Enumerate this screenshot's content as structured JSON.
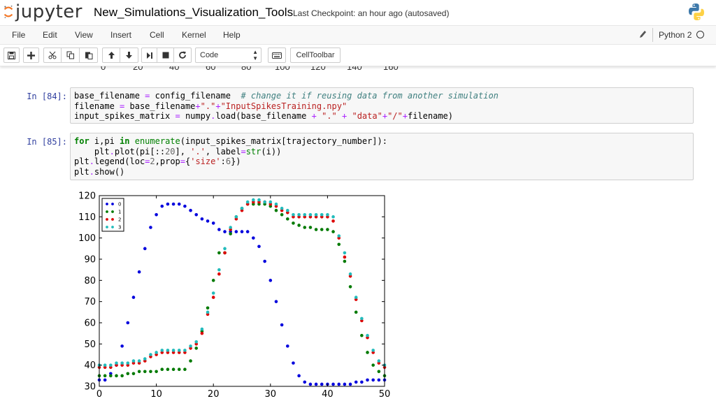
{
  "header": {
    "logo_text": "jupyter",
    "notebook_title": "New_Simulations_Visualization_Tools",
    "checkpoint": "Last Checkpoint: an hour ago (autosaved)",
    "python_logo": "python-logo-icon"
  },
  "menu": {
    "items": [
      "File",
      "Edit",
      "View",
      "Insert",
      "Cell",
      "Kernel",
      "Help"
    ],
    "kernel_name": "Python 2"
  },
  "toolbar": {
    "buttons": [
      "save-icon",
      "plus-icon",
      "scissors-icon",
      "copy-icon",
      "paste-icon",
      "arrow-up-icon",
      "arrow-down-icon",
      "step-forward-icon",
      "stop-icon",
      "restart-icon"
    ],
    "cell_type": "Code",
    "keyboard_icon": "keyboard-icon",
    "celltoolbar_label": "CellToolbar"
  },
  "prev_output_ticks": [
    "0",
    "20",
    "40",
    "60",
    "80",
    "100",
    "120",
    "140",
    "160"
  ],
  "cells": [
    {
      "prompt": "In [84]:",
      "lines": [
        "base_filename = config_filename  # change it if reusing data from another simulation",
        "filename = base_filename+\".\"+\"InputSpikesTraining.npy\"",
        "input_spikes_matrix = numpy.load(base_filename + \".\" + \"data\"+\"/\"+filename)"
      ]
    },
    {
      "prompt": "In [85]:",
      "lines": [
        "for i,pi in enumerate(input_spikes_matrix[trajectory_number]):",
        "    plt.plot(pi[::20], '.', label=str(i))",
        "plt.legend(loc=2,prop={'size':6})",
        "plt.show()"
      ]
    }
  ],
  "chart_data": {
    "type": "scatter",
    "xlim": [
      0,
      50
    ],
    "ylim": [
      30,
      120
    ],
    "xticks": [
      "0",
      "10",
      "20",
      "30",
      "40",
      "50"
    ],
    "yticks": [
      "30",
      "40",
      "50",
      "60",
      "70",
      "80",
      "90",
      "100",
      "110",
      "120"
    ],
    "legend_position": "top-left",
    "grid": false,
    "x": [
      0,
      1,
      2,
      3,
      4,
      5,
      6,
      7,
      8,
      9,
      10,
      11,
      12,
      13,
      14,
      15,
      16,
      17,
      18,
      19,
      20,
      21,
      22,
      23,
      24,
      25,
      26,
      27,
      28,
      29,
      30,
      31,
      32,
      33,
      34,
      35,
      36,
      37,
      38,
      39,
      40,
      41,
      42,
      43,
      44,
      45,
      46,
      47,
      48,
      49,
      50
    ],
    "series": [
      {
        "name": "0",
        "color": "#0000dd",
        "values": [
          33,
          33,
          36,
          40,
          49,
          60,
          72,
          84,
          95,
          105,
          111,
          115,
          116,
          116,
          116,
          115,
          113,
          111,
          109,
          108,
          107,
          104,
          103,
          103,
          103,
          103,
          103,
          100,
          96,
          89,
          80,
          70,
          59,
          49,
          41,
          35,
          32,
          31,
          31,
          31,
          31,
          31,
          31,
          31,
          31,
          32,
          32,
          33,
          33,
          33,
          33
        ]
      },
      {
        "name": "1",
        "color": "#007a00",
        "values": [
          35,
          35,
          35,
          35,
          35,
          36,
          36,
          37,
          37,
          37,
          37,
          38,
          38,
          38,
          38,
          38,
          42,
          48,
          56,
          67,
          80,
          93,
          93,
          102,
          110,
          114,
          116,
          116,
          116,
          116,
          115,
          113,
          111,
          109,
          107,
          106,
          105,
          105,
          104,
          104,
          104,
          103,
          97,
          89,
          77,
          65,
          54,
          46,
          40,
          37,
          35
        ]
      },
      {
        "name": "2",
        "color": "#dd0000",
        "values": [
          39,
          39,
          39,
          40,
          40,
          40,
          41,
          41,
          42,
          44,
          45,
          46,
          46,
          46,
          46,
          46,
          48,
          50,
          55,
          64,
          72,
          83,
          93,
          104,
          109,
          113,
          116,
          117,
          117,
          117,
          116,
          115,
          113,
          112,
          110,
          110,
          110,
          110,
          110,
          110,
          110,
          108,
          100,
          91,
          82,
          71,
          61,
          53,
          46,
          41,
          39
        ]
      },
      {
        "name": "3",
        "color": "#22bbbb",
        "values": [
          40,
          40,
          40,
          41,
          41,
          41,
          42,
          42,
          43,
          45,
          46,
          47,
          47,
          47,
          47,
          47,
          49,
          51,
          57,
          65,
          74,
          85,
          95,
          105,
          110,
          114,
          117,
          118,
          118,
          117,
          117,
          116,
          114,
          113,
          111,
          111,
          111,
          111,
          111,
          111,
          111,
          110,
          101,
          93,
          83,
          72,
          62,
          54,
          47,
          42,
          40
        ]
      }
    ]
  }
}
